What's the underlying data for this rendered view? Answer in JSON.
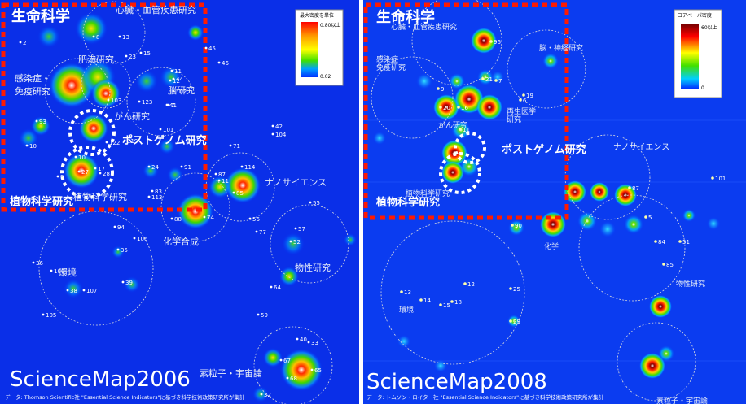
{
  "map2006": {
    "title_area": "生命科学",
    "labels": {
      "heart": "心臓・血管疾患研究",
      "obesity": "肥満研究",
      "infection": "感染症・",
      "immunity": "免疫研究",
      "brain": "脳研究",
      "cancer": "がん研究",
      "postgenome": "ポストゲノム研究",
      "plant": "植物科学研究",
      "plant_shadow": "植物科学研究",
      "nano": "ナノサイエンス",
      "chem": "化学合成",
      "env": "環境",
      "physics": "物性研究",
      "particle": "素粒子・宇宙論"
    },
    "brand": "ScienceMap2006",
    "footer": "データ: Thomson Scientific社 \"Essential Science Indicators\"に基づき科学技術政策研究所が集計",
    "legend": {
      "title": "最大密度を単位",
      "max": "0.80以上",
      "min": "0.02"
    }
  },
  "map2008": {
    "title_area": "生命科学",
    "labels": {
      "heart": "心臓・血管疾患研究",
      "brainnerve": "脳・神経研究",
      "infection": "感染症・",
      "immunity": "免疫研究",
      "regen1": "再生医学",
      "regen2": "研究",
      "cancer": "がん研究",
      "postgenome": "ポストゲノム研究",
      "plant": "植物科学研究",
      "nano": "ナノサイエンス",
      "chem": "化学",
      "env": "環境",
      "physics": "物性研究",
      "particle": "素粒子・宇宙論"
    },
    "brand": "ScienceMap2008",
    "footer": "データ: トムソン・ロイター社 \"Essential Science Indicators\"に基づき科学技術政策研究所が集計",
    "legend": {
      "title": "コアペーパ密度",
      "max": "60以上",
      "min": "0"
    }
  },
  "numbers2006": [
    "2",
    "13",
    "8",
    "23",
    "45",
    "46",
    "15",
    "11",
    "12",
    "44",
    "7",
    "102",
    "103",
    "123",
    "93",
    "41",
    "10",
    "122",
    "119",
    "101",
    "42",
    "104",
    "24",
    "71",
    "87",
    "114",
    "11",
    "91",
    "85",
    "113",
    "88",
    "74",
    "56",
    "77",
    "83",
    "55",
    "57",
    "106",
    "94",
    "35",
    "36",
    "100",
    "39",
    "52",
    "38",
    "107",
    "33",
    "64",
    "105",
    "59",
    "40",
    "67",
    "65",
    "68",
    "32",
    "17",
    "10",
    "9",
    "27",
    "28"
  ],
  "numbers2008": [
    "96",
    "21",
    "9",
    "20",
    "16",
    "19",
    "11",
    "7",
    "6",
    "87",
    "90",
    "5",
    "84",
    "51",
    "13",
    "14",
    "12",
    "18",
    "15",
    "29",
    "25",
    "101",
    "85"
  ]
}
